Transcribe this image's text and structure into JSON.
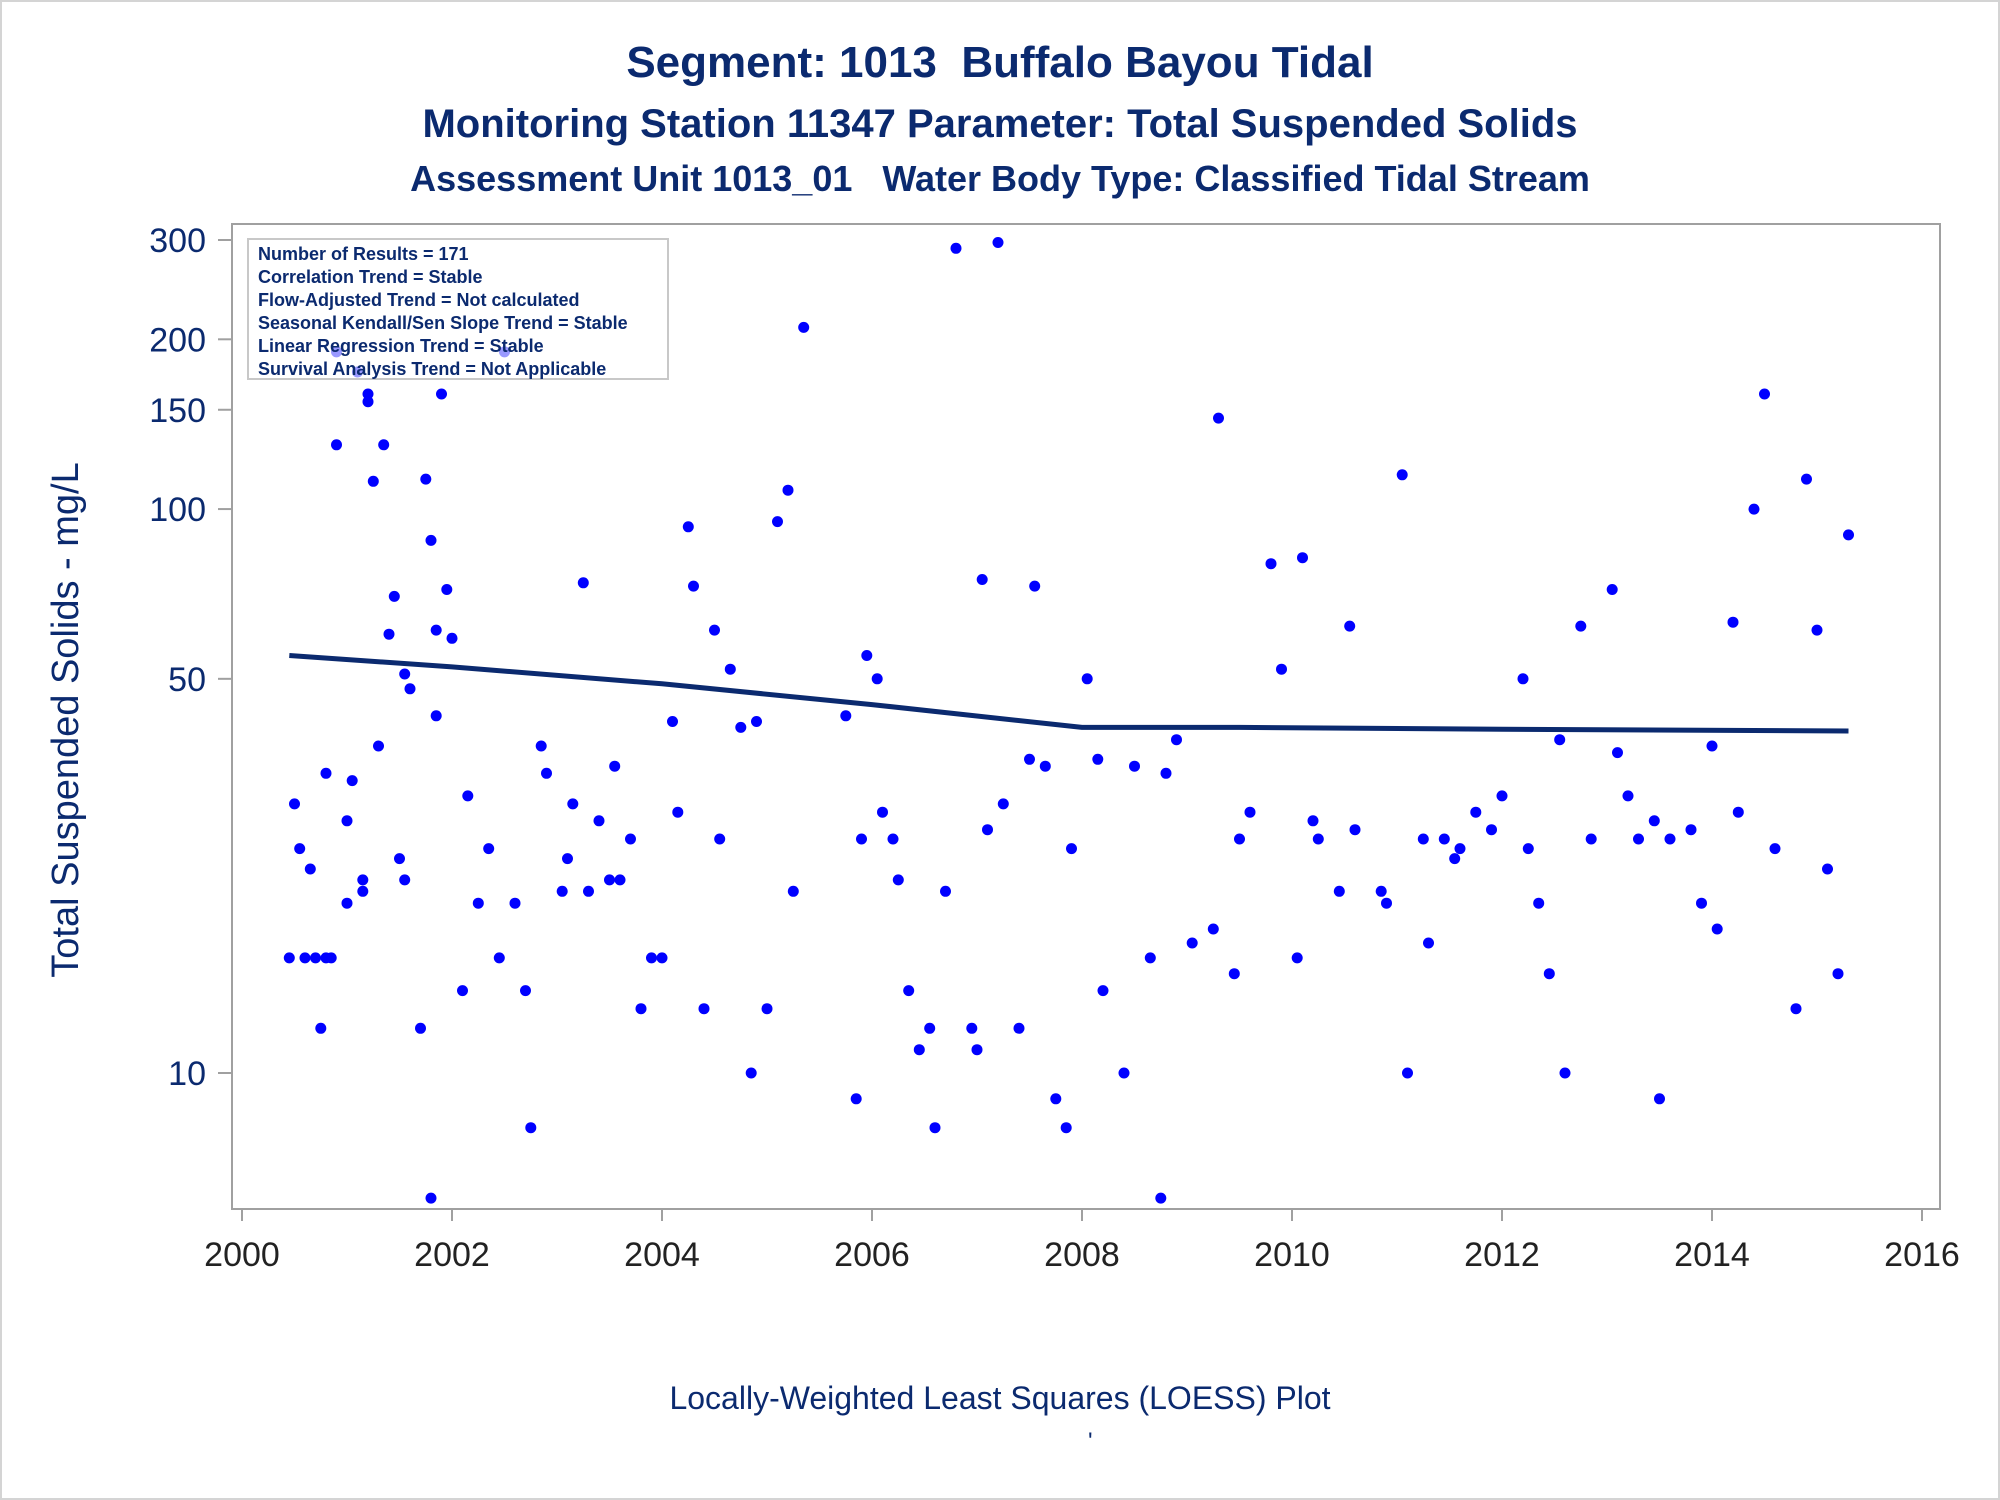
{
  "page": {
    "footnote": "Locally-Weighted Least Squares (LOESS) Plot",
    "footnote_mark": "'"
  },
  "colors": {
    "title": "#0b2a6f",
    "points": "#0000ff",
    "loess": "#0b2a6f",
    "axis": "#a0a0a0"
  },
  "chart_data": {
    "type": "scatter",
    "title": "Segment: 1013  Buffalo Bayou Tidal",
    "subtitle": "Monitoring Station 11347 Parameter: Total Suspended Solids",
    "subtitle2": "Assessment Unit 1013_01   Water Body Type: Classified Tidal Stream",
    "xlabel": "",
    "ylabel": "Total Suspended Solids - mg/L",
    "yscale": "log",
    "xlim": [
      2000,
      2016
    ],
    "ylim": [
      6,
      320
    ],
    "xticks": [
      2000,
      2002,
      2004,
      2006,
      2008,
      2010,
      2012,
      2014,
      2016
    ],
    "yticks": [
      10,
      50,
      100,
      150,
      200,
      300
    ],
    "grid": false,
    "legend_lines": [
      "Number of Results = 171",
      "Correlation Trend = Stable",
      "Flow-Adjusted Trend = Not calculated",
      "Seasonal Kendall/Sen Slope Trend = Stable",
      "Linear Regression Trend = Stable",
      "Survival Analysis Trend = Not Applicable"
    ],
    "legend_position": "top-left",
    "points": [
      [
        2000.45,
        16
      ],
      [
        2000.5,
        30
      ],
      [
        2000.55,
        25
      ],
      [
        2000.6,
        16
      ],
      [
        2000.65,
        23
      ],
      [
        2000.7,
        16
      ],
      [
        2000.75,
        12
      ],
      [
        2000.8,
        16
      ],
      [
        2000.8,
        34
      ],
      [
        2000.85,
        16
      ],
      [
        2000.9,
        190
      ],
      [
        2000.9,
        130
      ],
      [
        2001.0,
        20
      ],
      [
        2001.0,
        28
      ],
      [
        2001.05,
        33
      ],
      [
        2001.1,
        175
      ],
      [
        2001.15,
        21
      ],
      [
        2001.15,
        22
      ],
      [
        2001.2,
        160
      ],
      [
        2001.2,
        155
      ],
      [
        2001.25,
        112
      ],
      [
        2001.3,
        38
      ],
      [
        2001.35,
        130
      ],
      [
        2001.4,
        60
      ],
      [
        2001.45,
        70
      ],
      [
        2001.5,
        24
      ],
      [
        2001.55,
        51
      ],
      [
        2001.55,
        22
      ],
      [
        2001.6,
        48
      ],
      [
        2001.7,
        12
      ],
      [
        2001.75,
        113
      ],
      [
        2001.8,
        88
      ],
      [
        2001.8,
        6
      ],
      [
        2001.85,
        43
      ],
      [
        2001.85,
        61
      ],
      [
        2001.9,
        160
      ],
      [
        2001.95,
        72
      ],
      [
        2002.0,
        59
      ],
      [
        2002.1,
        14
      ],
      [
        2002.15,
        31
      ],
      [
        2002.25,
        20
      ],
      [
        2002.35,
        25
      ],
      [
        2002.45,
        16
      ],
      [
        2002.5,
        190
      ],
      [
        2002.6,
        20
      ],
      [
        2002.7,
        14
      ],
      [
        2002.75,
        8
      ],
      [
        2002.85,
        38
      ],
      [
        2002.9,
        34
      ],
      [
        2003.05,
        21
      ],
      [
        2003.1,
        24
      ],
      [
        2003.15,
        30
      ],
      [
        2003.25,
        74
      ],
      [
        2003.3,
        21
      ],
      [
        2003.4,
        28
      ],
      [
        2003.5,
        22
      ],
      [
        2003.55,
        35
      ],
      [
        2003.6,
        22
      ],
      [
        2003.7,
        26
      ],
      [
        2003.8,
        13
      ],
      [
        2003.9,
        16
      ],
      [
        2004.0,
        16
      ],
      [
        2004.1,
        42
      ],
      [
        2004.15,
        29
      ],
      [
        2004.25,
        93
      ],
      [
        2004.3,
        73
      ],
      [
        2004.4,
        13
      ],
      [
        2004.5,
        61
      ],
      [
        2004.55,
        26
      ],
      [
        2004.65,
        52
      ],
      [
        2004.75,
        41
      ],
      [
        2004.85,
        10
      ],
      [
        2004.9,
        42
      ],
      [
        2005.0,
        13
      ],
      [
        2005.1,
        95
      ],
      [
        2005.2,
        108
      ],
      [
        2005.25,
        21
      ],
      [
        2005.35,
        210
      ],
      [
        2005.75,
        43
      ],
      [
        2005.85,
        9
      ],
      [
        2005.9,
        26
      ],
      [
        2005.95,
        55
      ],
      [
        2006.05,
        50
      ],
      [
        2006.1,
        29
      ],
      [
        2006.2,
        26
      ],
      [
        2006.25,
        22
      ],
      [
        2006.35,
        14
      ],
      [
        2006.45,
        11
      ],
      [
        2006.55,
        12
      ],
      [
        2006.6,
        8
      ],
      [
        2006.7,
        21
      ],
      [
        2006.8,
        290
      ],
      [
        2006.95,
        12
      ],
      [
        2007.0,
        11
      ],
      [
        2007.05,
        75
      ],
      [
        2007.1,
        27
      ],
      [
        2007.2,
        297
      ],
      [
        2007.25,
        30
      ],
      [
        2007.4,
        12
      ],
      [
        2007.5,
        36
      ],
      [
        2007.55,
        73
      ],
      [
        2007.65,
        35
      ],
      [
        2007.75,
        9
      ],
      [
        2007.85,
        8
      ],
      [
        2007.9,
        25
      ],
      [
        2008.05,
        50
      ],
      [
        2008.15,
        36
      ],
      [
        2008.2,
        14
      ],
      [
        2008.4,
        10
      ],
      [
        2008.5,
        35
      ],
      [
        2008.65,
        16
      ],
      [
        2008.75,
        6
      ],
      [
        2008.8,
        34
      ],
      [
        2008.9,
        39
      ],
      [
        2009.05,
        17
      ],
      [
        2009.25,
        18
      ],
      [
        2009.3,
        145
      ],
      [
        2009.45,
        15
      ],
      [
        2009.5,
        26
      ],
      [
        2009.6,
        29
      ],
      [
        2009.8,
        80
      ],
      [
        2009.9,
        52
      ],
      [
        2010.05,
        16
      ],
      [
        2010.1,
        82
      ],
      [
        2010.2,
        28
      ],
      [
        2010.25,
        26
      ],
      [
        2010.45,
        21
      ],
      [
        2010.55,
        62
      ],
      [
        2010.6,
        27
      ],
      [
        2010.85,
        21
      ],
      [
        2010.9,
        20
      ],
      [
        2011.05,
        115
      ],
      [
        2011.1,
        10
      ],
      [
        2011.25,
        26
      ],
      [
        2011.3,
        17
      ],
      [
        2011.45,
        26
      ],
      [
        2011.55,
        24
      ],
      [
        2011.6,
        25
      ],
      [
        2011.75,
        29
      ],
      [
        2011.9,
        27
      ],
      [
        2012.0,
        31
      ],
      [
        2012.2,
        50
      ],
      [
        2012.25,
        25
      ],
      [
        2012.35,
        20
      ],
      [
        2012.45,
        15
      ],
      [
        2012.55,
        39
      ],
      [
        2012.6,
        10
      ],
      [
        2012.75,
        62
      ],
      [
        2012.85,
        26
      ],
      [
        2013.05,
        72
      ],
      [
        2013.1,
        37
      ],
      [
        2013.2,
        31
      ],
      [
        2013.3,
        26
      ],
      [
        2013.45,
        28
      ],
      [
        2013.5,
        9
      ],
      [
        2013.6,
        26
      ],
      [
        2013.8,
        27
      ],
      [
        2013.9,
        20
      ],
      [
        2014.0,
        38
      ],
      [
        2014.05,
        18
      ],
      [
        2014.2,
        63
      ],
      [
        2014.25,
        29
      ],
      [
        2014.4,
        100
      ],
      [
        2014.5,
        160
      ],
      [
        2014.6,
        25
      ],
      [
        2014.8,
        13
      ],
      [
        2014.9,
        113
      ],
      [
        2015.0,
        61
      ],
      [
        2015.1,
        23
      ],
      [
        2015.2,
        15
      ],
      [
        2015.3,
        90
      ]
    ],
    "loess": [
      [
        2000.45,
        55
      ],
      [
        2002,
        52.5
      ],
      [
        2004,
        49
      ],
      [
        2006,
        45
      ],
      [
        2008,
        41
      ],
      [
        2009.5,
        41
      ],
      [
        2012,
        40.7
      ],
      [
        2015.3,
        40.4
      ]
    ]
  }
}
